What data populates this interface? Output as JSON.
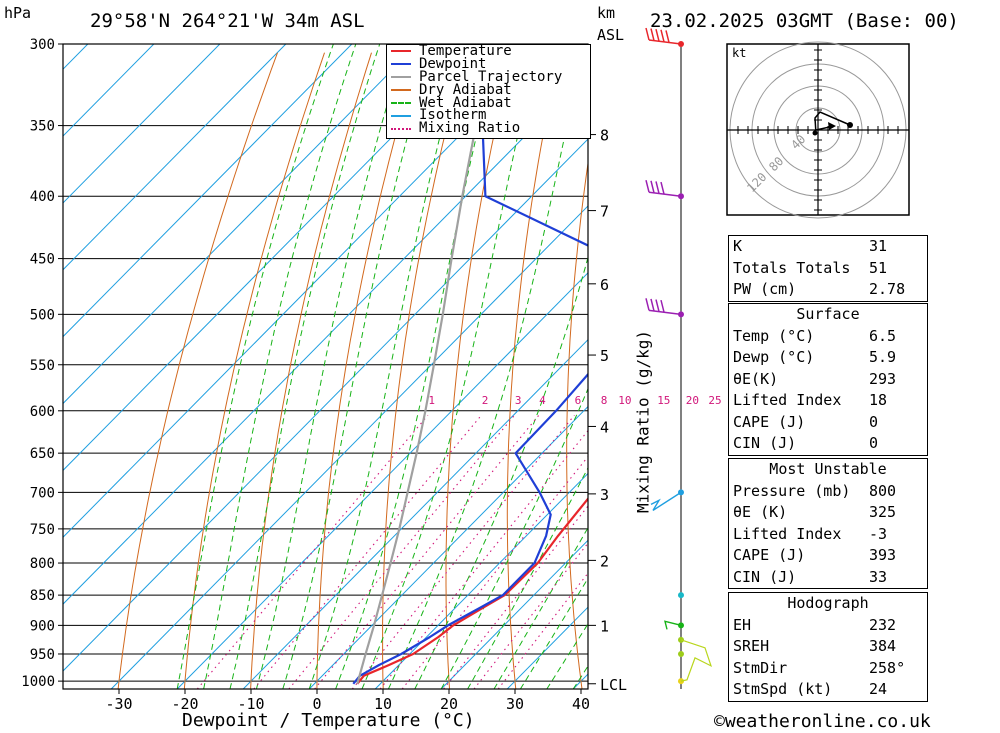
{
  "header": {
    "left_unit": "hPa",
    "location": "29°58'N  264°21'W  34m  ASL",
    "km_unit": "km",
    "asl_unit": "ASL",
    "datetime": "23.02.2025  03GMT  (Base: 00)"
  },
  "legend": {
    "items": [
      {
        "label": "Temperature",
        "color": "#e8262b",
        "style": "solid"
      },
      {
        "label": "Dewpoint",
        "color": "#1f3fd6",
        "style": "solid"
      },
      {
        "label": "Parcel Trajectory",
        "color": "#a0a0a0",
        "style": "solid"
      },
      {
        "label": "Dry Adiabat",
        "color": "#d2691e",
        "style": "solid"
      },
      {
        "label": "Wet Adiabat",
        "color": "#17b317",
        "style": "dashed"
      },
      {
        "label": "Isotherm",
        "color": "#1f9fe0",
        "style": "solid"
      },
      {
        "label": "Mixing Ratio",
        "color": "#d1167a",
        "style": "dotted"
      }
    ]
  },
  "chart_data": {
    "type": "line",
    "title": "29°58'N  264°21'W  34m  ASL",
    "xlabel": "Dewpoint / Temperature (°C)",
    "ylabel": "hPa",
    "right_label": "Mixing Ratio (g/kg)",
    "x_ticks": [
      -30,
      -20,
      -10,
      0,
      10,
      20,
      30,
      40
    ],
    "pressure_levels": [
      300,
      350,
      400,
      450,
      500,
      550,
      600,
      650,
      700,
      750,
      800,
      850,
      900,
      950,
      1000
    ],
    "km_ticks": [
      {
        "label": "8",
        "p": 356
      },
      {
        "label": "7",
        "p": 411
      },
      {
        "label": "6",
        "p": 472
      },
      {
        "label": "5",
        "p": 540
      },
      {
        "label": "4",
        "p": 618
      },
      {
        "label": "3",
        "p": 702
      },
      {
        "label": "2",
        "p": 796
      },
      {
        "label": "1",
        "p": 900
      },
      {
        "label": "LCL",
        "p": 1005
      }
    ],
    "mixing_ratio_labels": [
      "1",
      "2",
      "3",
      "4",
      "6",
      "8",
      "10",
      "15",
      "20",
      "25"
    ],
    "series": [
      {
        "name": "Temperature",
        "color": "#e8262b",
        "points": [
          [
            1005,
            6.5
          ],
          [
            990,
            6.3
          ],
          [
            970,
            8.5
          ],
          [
            950,
            10.5
          ],
          [
            920,
            11.8
          ],
          [
            900,
            12.3
          ],
          [
            870,
            14.2
          ],
          [
            850,
            15.6
          ],
          [
            800,
            15.8
          ],
          [
            760,
            14.8
          ],
          [
            700,
            13.6
          ],
          [
            650,
            13.0
          ],
          [
            600,
            8.7
          ],
          [
            550,
            3.6
          ],
          [
            500,
            -1.5
          ],
          [
            450,
            -8.5
          ],
          [
            400,
            -17.5
          ],
          [
            350,
            -27.5
          ],
          [
            300,
            -39.0
          ]
        ]
      },
      {
        "name": "Dewpoint",
        "color": "#1f3fd6",
        "points": [
          [
            1005,
            5.9
          ],
          [
            990,
            5.7
          ],
          [
            970,
            7.0
          ],
          [
            950,
            8.7
          ],
          [
            920,
            10.5
          ],
          [
            900,
            11.5
          ],
          [
            870,
            13.8
          ],
          [
            850,
            15.3
          ],
          [
            800,
            15.3
          ],
          [
            760,
            13.0
          ],
          [
            730,
            10.5
          ],
          [
            700,
            5.5
          ],
          [
            650,
            -4.0
          ],
          [
            600,
            -4.2
          ],
          [
            550,
            -5.0
          ],
          [
            500,
            -10.0
          ],
          [
            450,
            -18.0
          ],
          [
            400,
            -47.0
          ],
          [
            350,
            -58.0
          ],
          [
            300,
            -68.0
          ]
        ]
      },
      {
        "name": "Parcel Trajectory",
        "color": "#a0a0a0",
        "points": [
          [
            1005,
            6.5
          ],
          [
            950,
            3.3
          ],
          [
            900,
            0.3
          ],
          [
            850,
            -3.0
          ],
          [
            800,
            -6.5
          ],
          [
            750,
            -10.3
          ],
          [
            700,
            -14.5
          ],
          [
            650,
            -19.0
          ],
          [
            600,
            -24.0
          ],
          [
            550,
            -29.6
          ],
          [
            500,
            -35.8
          ],
          [
            450,
            -42.8
          ],
          [
            400,
            -50.5
          ],
          [
            350,
            -59.0
          ],
          [
            300,
            -68.5
          ]
        ]
      }
    ],
    "wind_levels": [
      300,
      400,
      500,
      700,
      850,
      900,
      925,
      950,
      1000
    ],
    "hodograph": {
      "unit": "kt",
      "ring_labels": [
        "40",
        "80",
        "120"
      ]
    },
    "grid": true
  },
  "indices": {
    "k_label": "K",
    "k_value": "31",
    "tt_label": "Totals Totals",
    "tt_value": "51",
    "pw_label": "PW (cm)",
    "pw_value": "2.78",
    "surface_title": "Surface",
    "surface": [
      {
        "label": "Temp (°C)",
        "value": "6.5"
      },
      {
        "label": "Dewp (°C)",
        "value": "5.9"
      },
      {
        "label": "θE(K)",
        "value": "293"
      },
      {
        "label": "Lifted Index",
        "value": "18"
      },
      {
        "label": "CAPE (J)",
        "value": "0"
      },
      {
        "label": "CIN (J)",
        "value": "0"
      }
    ],
    "mu_title": "Most Unstable",
    "mu": [
      {
        "label": "Pressure (mb)",
        "value": "800"
      },
      {
        "label": "θE (K)",
        "value": "325"
      },
      {
        "label": "Lifted Index",
        "value": "-3"
      },
      {
        "label": "CAPE (J)",
        "value": "393"
      },
      {
        "label": "CIN (J)",
        "value": "33"
      }
    ],
    "hodo_title": "Hodograph",
    "hodo": [
      {
        "label": "EH",
        "value": "232"
      },
      {
        "label": "SREH",
        "value": "384"
      },
      {
        "label": "StmDir",
        "value": "258°"
      },
      {
        "label": "StmSpd (kt)",
        "value": "24"
      }
    ]
  },
  "footer": {
    "copyright": "©weatheronline.co.uk"
  }
}
